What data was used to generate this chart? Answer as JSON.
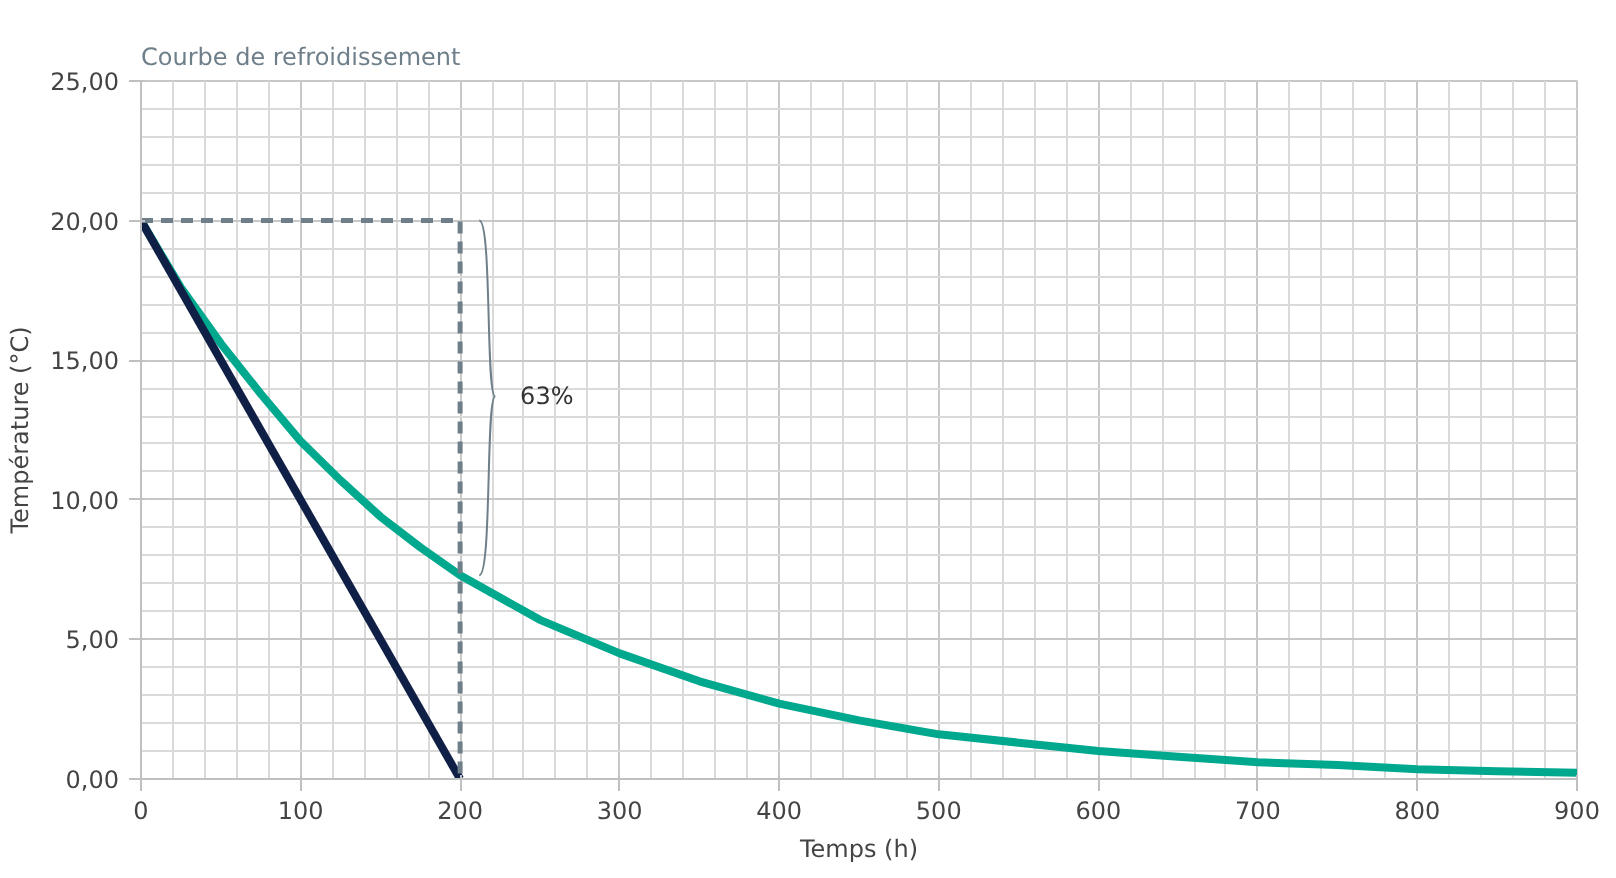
{
  "chart_data": {
    "type": "line",
    "title": "Courbe de refroidissement",
    "xlabel": "Temps (h)",
    "ylabel": "Température (°C)",
    "xlim": [
      0,
      900
    ],
    "ylim": [
      0,
      25
    ],
    "xticks": [
      0,
      100,
      200,
      300,
      400,
      500,
      600,
      700,
      800,
      900
    ],
    "yticks": [
      {
        "value": 0,
        "label": "0,00"
      },
      {
        "value": 5,
        "label": "5,00"
      },
      {
        "value": 10,
        "label": "10,00"
      },
      {
        "value": 15,
        "label": "15,00"
      },
      {
        "value": 20,
        "label": "20,00"
      },
      {
        "value": 25,
        "label": "25,00"
      }
    ],
    "grid": true,
    "annotations": [
      {
        "text": "63%",
        "x": 200,
        "y": 13.7
      }
    ],
    "series": [
      {
        "color": "#00a88e",
        "x": [
          0,
          25,
          50,
          75,
          100,
          125,
          150,
          175,
          200,
          250,
          300,
          350,
          400,
          450,
          500,
          550,
          600,
          650,
          700,
          750,
          800,
          850,
          900
        ],
        "values": [
          20,
          17.6,
          15.6,
          13.8,
          12.1,
          10.7,
          9.4,
          8.3,
          7.3,
          5.7,
          4.5,
          3.5,
          2.7,
          2.1,
          1.6,
          1.3,
          1.0,
          0.8,
          0.6,
          0.5,
          0.35,
          0.28,
          0.22
        ]
      },
      {
        "color": "#0f1f45",
        "x": [
          0,
          200
        ],
        "values": [
          20,
          0
        ]
      },
      {
        "color": "#6e7f8a",
        "x": [
          0,
          200,
          200
        ],
        "values": [
          20,
          20,
          0
        ],
        "line_style": "dashed"
      }
    ]
  }
}
